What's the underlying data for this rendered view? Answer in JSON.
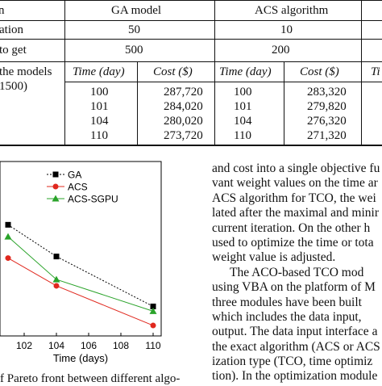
{
  "table": {
    "header": {
      "col1": "n",
      "col2": "GA model",
      "col3": "ACS algorithm"
    },
    "rows": [
      {
        "label": "ation",
        "ga": "50",
        "acs": "10"
      },
      {
        "label": "to get",
        "ga": "500",
        "acs": "200"
      }
    ],
    "models_label": [
      "the models",
      "1500)"
    ],
    "subheaders": {
      "time": "Time (day)",
      "cost": "Cost ($)",
      "time_cut": "Ti"
    },
    "results": [
      {
        "ga_time": "100",
        "ga_cost": "287,720",
        "acs_time": "100",
        "acs_cost": "283,320"
      },
      {
        "ga_time": "101",
        "ga_cost": "284,020",
        "acs_time": "101",
        "acs_cost": "279,820"
      },
      {
        "ga_time": "104",
        "ga_cost": "280,020",
        "acs_time": "104",
        "acs_cost": "276,320"
      },
      {
        "ga_time": "110",
        "ga_cost": "273,720",
        "acs_time": "110",
        "acs_cost": "271,320"
      }
    ]
  },
  "chart_data": {
    "type": "line",
    "xlabel": "Time (days)",
    "ylabel": "",
    "xticks": [
      "102",
      "104",
      "106",
      "108",
      "110"
    ],
    "xlim": [
      100.5,
      110.5
    ],
    "ylim": [
      270000,
      292000
    ],
    "legend_position": "top-left",
    "series": [
      {
        "name": "GA",
        "color": "#000000",
        "marker": "square",
        "dash": "2,2",
        "x": [
          101,
          104,
          110
        ],
        "y": [
          284020,
          280020,
          273720
        ]
      },
      {
        "name": "ACS",
        "color": "#e0281e",
        "marker": "circle",
        "dash": "",
        "x": [
          101,
          104,
          110
        ],
        "y": [
          279820,
          276320,
          271320
        ]
      },
      {
        "name": "ACS-SGPU",
        "color": "#2aa32a",
        "marker": "triangle",
        "dash": "",
        "x": [
          101,
          104,
          110
        ],
        "y": [
          282520,
          277120,
          273120
        ]
      }
    ]
  },
  "caption": "f Pareto front between different algo-",
  "body_lines": [
    "and cost into a single objective fu",
    "vant weight values on the time ar",
    "ACS algorithm for TCO, the wei",
    "lated after the maximal and minir",
    "current iteration. On the other h",
    "used to optimize the time or tota",
    "weight value is adjusted.",
    "The ACO-based TCO mod",
    "using VBA on the platform of M",
    "three modules have been built",
    "which includes the data input,",
    "output. The data input interface a",
    "the exact algorithm (ACS or ACS",
    "ization type (TCO, time optimiz",
    "tion). In the optimization module"
  ]
}
